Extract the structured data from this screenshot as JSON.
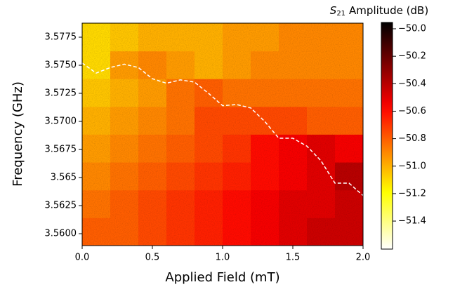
{
  "chart_data": {
    "type": "heatmap",
    "xlabel": "Applied Field (mT)",
    "ylabel": "Frequency (GHz)",
    "xlim": [
      0,
      2
    ],
    "ylim": [
      3.55894,
      3.57875
    ],
    "xticks": [
      {
        "value": 0,
        "label": "0.0"
      },
      0.5,
      {
        "value": 1,
        "label": "1.0"
      },
      1.5,
      {
        "value": 2,
        "label": "2.0"
      }
    ],
    "yticks": [
      {
        "value": 3.56,
        "label": "3.5600"
      },
      3.5625,
      3.565,
      3.5675,
      {
        "value": 3.57,
        "label": "3.5700"
      },
      3.5725,
      {
        "value": 3.575,
        "label": "3.5750"
      },
      3.5775
    ],
    "x_bins": [
      0,
      0.2,
      0.4,
      0.6,
      0.8,
      1.0,
      1.2,
      1.4,
      1.6,
      1.8,
      2.0
    ],
    "y_bins": [
      3.55894,
      3.56142,
      3.56389,
      3.56637,
      3.56885,
      3.57132,
      3.5738,
      3.57627,
      3.57875
    ],
    "z": [
      [
        -50.8,
        -50.8,
        -50.75,
        -50.7,
        -50.65,
        -50.6,
        -50.55,
        -50.5,
        -50.45,
        -50.45
      ],
      [
        -50.85,
        -50.8,
        -50.75,
        -50.7,
        -50.65,
        -50.6,
        -50.55,
        -50.5,
        -50.5,
        -50.45
      ],
      [
        -50.9,
        -50.85,
        -50.8,
        -50.75,
        -50.7,
        -50.65,
        -50.6,
        -50.55,
        -50.5,
        -50.4
      ],
      [
        -50.95,
        -50.9,
        -50.85,
        -50.8,
        -50.75,
        -50.7,
        -50.6,
        -50.55,
        -50.5,
        -50.55
      ],
      [
        -51.0,
        -50.95,
        -50.9,
        -50.85,
        -50.75,
        -50.75,
        -50.75,
        -50.75,
        -50.8,
        -50.8
      ],
      [
        -51.05,
        -51.0,
        -50.95,
        -50.85,
        -50.8,
        -50.85,
        -50.85,
        -50.85,
        -50.85,
        -50.85
      ],
      [
        -51.1,
        -50.95,
        -50.9,
        -50.95,
        -51.0,
        -50.95,
        -50.9,
        -50.9,
        -50.9,
        -50.9
      ],
      [
        -51.1,
        -51.05,
        -51.0,
        -51.0,
        -51.0,
        -50.95,
        -50.95,
        -50.9,
        -50.9,
        -50.9
      ]
    ],
    "colormap": "hot_r",
    "clim": [
      -51.604,
      -49.954
    ],
    "colorbar_label": {
      "symbol": "S",
      "subscript": "21",
      "text": "Amplitude (dB)"
    },
    "colorbar_ticks": [
      {
        "value": -50.0,
        "label": "−50.0"
      },
      {
        "value": -50.2,
        "label": "−50.2"
      },
      {
        "value": -50.4,
        "label": "−50.4"
      },
      {
        "value": -50.6,
        "label": "−50.6"
      },
      {
        "value": -50.8,
        "label": "−50.8"
      },
      {
        "value": -51.0,
        "label": "−51.0"
      },
      {
        "value": -51.2,
        "label": "−51.2"
      },
      {
        "value": -51.4,
        "label": "−51.4"
      }
    ],
    "line": {
      "color": "#ffffff",
      "dashed": true,
      "x": [
        0,
        0.1,
        0.2,
        0.3,
        0.4,
        0.5,
        0.6,
        0.7,
        0.8,
        0.9,
        1.0,
        1.1,
        1.2,
        1.3,
        1.4,
        1.5,
        1.6,
        1.7,
        1.8,
        1.9,
        2.0
      ],
      "values": [
        3.5752,
        3.5743,
        3.5748,
        3.5751,
        3.5748,
        3.5738,
        3.5734,
        3.5737,
        3.5735,
        3.5725,
        3.5714,
        3.5715,
        3.5712,
        3.57,
        3.5685,
        3.5685,
        3.5678,
        3.5665,
        3.5645,
        3.5645,
        3.5634
      ]
    }
  }
}
